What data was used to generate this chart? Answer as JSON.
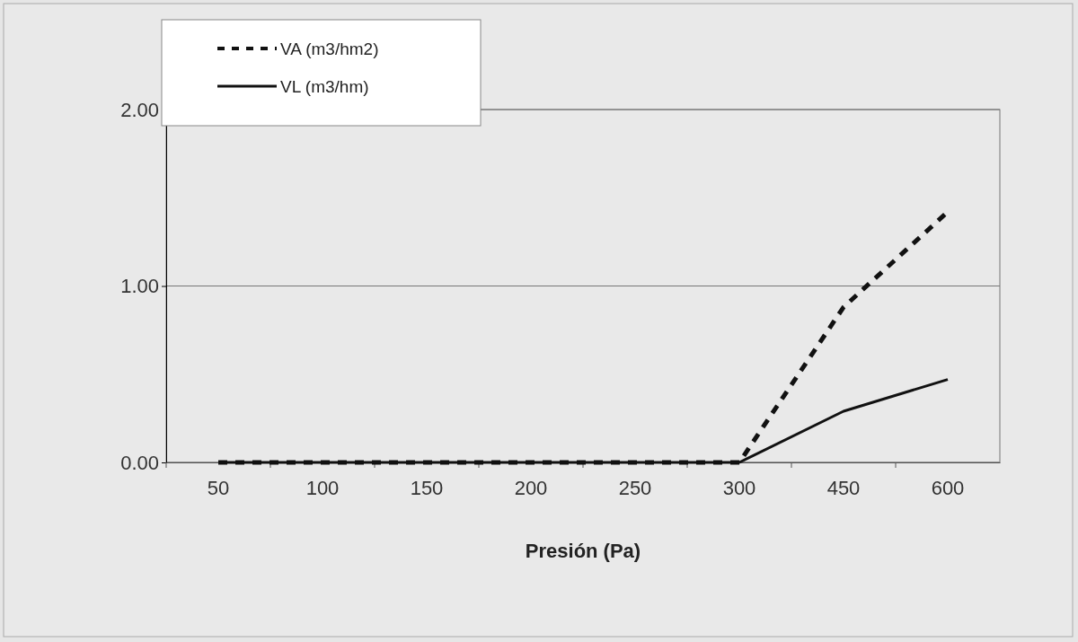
{
  "chart_data": {
    "type": "line",
    "xlabel": "Presión (Pa)",
    "categories": [
      "50",
      "100",
      "150",
      "200",
      "250",
      "300",
      "450",
      "600"
    ],
    "series": [
      {
        "name": "VA (m3/hm2)",
        "color": "#111111",
        "line_style": "dashed",
        "values": [
          0,
          0,
          0,
          0,
          0,
          0,
          0.88,
          1.42
        ]
      },
      {
        "name": "VL (m3/hm)",
        "color": "#111111",
        "line_style": "solid",
        "values": [
          0,
          0,
          0,
          0,
          0,
          0,
          0.29,
          0.47
        ]
      }
    ],
    "ylim": [
      0,
      2
    ],
    "yticks": [
      {
        "value": 0,
        "label": "0.00"
      },
      {
        "value": 1,
        "label": "1.00"
      },
      {
        "value": 2,
        "label": "2.00"
      }
    ],
    "grid": "y",
    "legend": "top left",
    "marker": "none"
  }
}
